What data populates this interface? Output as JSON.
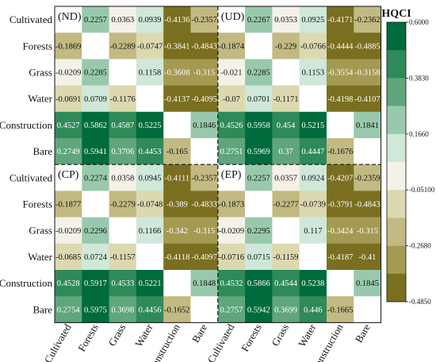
{
  "chart_data": {
    "type": "heatmap",
    "colorbar_title": "HQCI",
    "colorbar_ticks": [
      "0.6000",
      "0.3830",
      "0.1660",
      "-0.05100",
      "-0.2680",
      "-0.4850"
    ],
    "colorbar_tick_values": [
      0.6,
      0.383,
      0.166,
      -0.051,
      -0.268,
      -0.485
    ],
    "color_steps": [
      "#006b3c",
      "#2e8a59",
      "#5fa67c",
      "#99c9ac",
      "#cfe8d9",
      "#f4f2e8",
      "#dcd8b0",
      "#c2ba82",
      "#a49a52",
      "#7a6f20"
    ],
    "value_range": [
      -0.485,
      0.6
    ],
    "row_labels": [
      "Cultivated",
      "Forests",
      "Grass",
      "Water",
      "Construction",
      "Bare",
      "Cultivated",
      "Forests",
      "Grass",
      "Water",
      "Construction",
      "Bare"
    ],
    "col_labels": [
      "Cultivated",
      "Forests",
      "Grass",
      "Water",
      "Construction",
      "Bare",
      "Cultivated",
      "Forests",
      "Grass",
      "Water",
      "Construction",
      "Bare"
    ],
    "panel_labels": [
      "(ND)",
      "(UD)",
      "(CP)",
      "(EP)"
    ],
    "matrix": [
      [
        null,
        "0.2257",
        "0.0363",
        "0.0939",
        "-0.4136",
        "-0.2357",
        null,
        "0.2267",
        "0.0353",
        "0.0925",
        "-0.4171",
        "-0.2362"
      ],
      [
        "-0.1869",
        null,
        "-0.2289",
        "-0.0747",
        "-0.3841",
        "-0.4843",
        "-0.1874",
        null,
        "-0.229",
        "-0.0766",
        "-0.4444",
        "-0.4885"
      ],
      [
        "-0.0209",
        "0.2285",
        null,
        "0.1158",
        "-0.3608",
        "-0.315",
        "-0.021",
        "0.2285",
        null,
        "0.1153",
        "-0.3554",
        "-0.3158"
      ],
      [
        "-0.0691",
        "0.0709",
        "-0.1176",
        null,
        "-0.4137",
        "-0.4095",
        "-0.07",
        "0.0701",
        "-0.1171",
        null,
        "-0.4198",
        "-0.4107"
      ],
      [
        "0.4527",
        "0.5862",
        "0.4587",
        "0.5225",
        null,
        "0.1846",
        "0.4526",
        "0.5958",
        "0.454",
        "0.5215",
        null,
        "0.1841"
      ],
      [
        "0.2749",
        "0.5941",
        "0.3706",
        "0.4453",
        "-0.165",
        null,
        "0.2751",
        "0.5969",
        "0.37",
        "0.4447",
        "-0.1676",
        null
      ],
      [
        null,
        "0.2274",
        "0.0358",
        "0.0945",
        "-0.4111",
        "-0.2357",
        null,
        "0.2257",
        "0.0357",
        "0.0924",
        "-0.4207",
        "-0.2359"
      ],
      [
        "-0.1877",
        null,
        "-0.2279",
        "-0.0748",
        "-0.389",
        "-0.4833",
        "-0.1873",
        null,
        "-0.2277",
        "-0.0739",
        "-0.3791",
        "-0.4843"
      ],
      [
        "-0.0209",
        "0.2296",
        null,
        "0.1166",
        "-0.342",
        "-0.315",
        "-0.0209",
        "0.2295",
        null,
        "0.117",
        "-0.3424",
        "-0.315"
      ],
      [
        "-0.0685",
        "0.0724",
        "-0.1157",
        null,
        "-0.4118",
        "-0.4097",
        "-0.0716",
        "0.0715",
        "-0.1159",
        null,
        "-0.4187",
        "-0.41"
      ],
      [
        "0.4528",
        "0.5917",
        "0.4533",
        "0.5221",
        null,
        "0.1848",
        "0.4532",
        "0.5866",
        "0.4544",
        "0.5238",
        null,
        "0.1845"
      ],
      [
        "0.2754",
        "0.5975",
        "0.3698",
        "0.4456",
        "-0.1652",
        null,
        "0.2757",
        "0.5942",
        "0.3699",
        "0.446",
        "-0.1665",
        null
      ]
    ]
  }
}
